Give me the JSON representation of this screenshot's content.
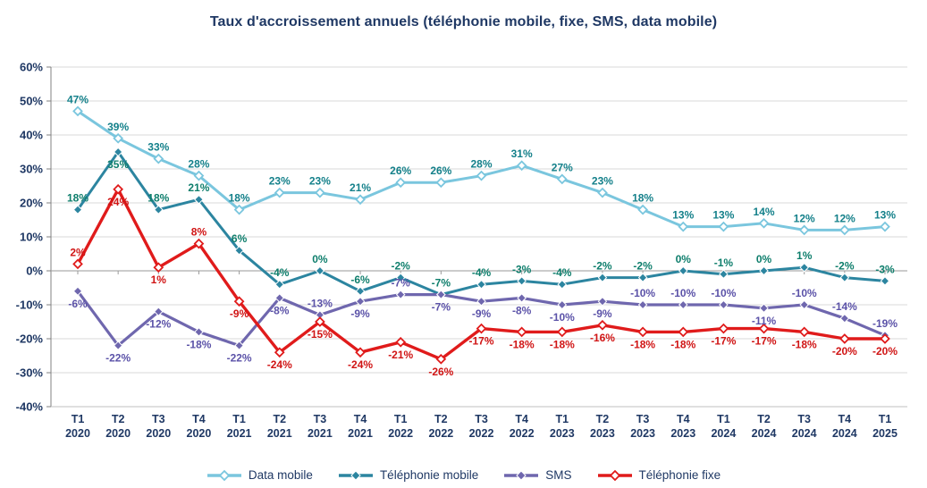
{
  "title": "Taux d'accroissement annuels (téléphonie mobile, fixe, SMS, data mobile)",
  "chart_data": {
    "type": "line",
    "title": "Taux d'accroissement annuels (téléphonie mobile, fixe, SMS, data mobile)",
    "categories": [
      "T1 2020",
      "T2 2020",
      "T3 2020",
      "T4 2020",
      "T1 2021",
      "T2 2021",
      "T3 2021",
      "T4 2021",
      "T1 2022",
      "T2 2022",
      "T3 2022",
      "T4 2022",
      "T1 2023",
      "T2 2023",
      "T3 2023",
      "T4 2023",
      "T1 2024",
      "T2 2024",
      "T3 2024",
      "T4 2024",
      "T1 2025"
    ],
    "y_axis": {
      "min": -40,
      "max": 60,
      "step": 10,
      "tick_suffix": "%"
    },
    "grid": true,
    "legend_position": "bottom",
    "axis_text_color": "#1F3864",
    "grid_color": "#D9D9D9",
    "series": [
      {
        "name": "Data mobile",
        "color": "#7AC6DE",
        "label_color": "#14808A",
        "marker": "hollow",
        "values": [
          47,
          39,
          33,
          28,
          18,
          23,
          23,
          21,
          26,
          26,
          28,
          31,
          27,
          23,
          18,
          13,
          13,
          14,
          12,
          12,
          13
        ]
      },
      {
        "name": "Téléphonie mobile",
        "color": "#2C85A0",
        "label_color": "#0E7E6C",
        "marker": "solid",
        "values": [
          18,
          35,
          18,
          21,
          6,
          -4,
          0,
          -6,
          -2,
          -7,
          -4,
          -3,
          -4,
          -2,
          -2,
          0,
          -1,
          0,
          1,
          -2,
          -3
        ]
      },
      {
        "name": "SMS",
        "color": "#6F67AE",
        "label_color": "#5B52A8",
        "marker": "solid",
        "values": [
          -6,
          -22,
          -12,
          -18,
          -22,
          -8,
          -13,
          -9,
          -7,
          -7,
          -9,
          -8,
          -10,
          -9,
          -10,
          -10,
          -10,
          -11,
          -10,
          -14,
          -19
        ]
      },
      {
        "name": "Téléphonie fixe",
        "color": "#E01B1B",
        "label_color": "#D01414",
        "marker": "hollow",
        "values": [
          2,
          24,
          1,
          8,
          -9,
          -24,
          -15,
          -24,
          -21,
          -26,
          -17,
          -18,
          -18,
          -16,
          -18,
          -18,
          -17,
          -17,
          -18,
          -20,
          -20
        ]
      }
    ]
  },
  "legend": {
    "items": [
      "Data mobile",
      "Téléphonie mobile",
      "SMS",
      "Téléphonie fixe"
    ]
  }
}
